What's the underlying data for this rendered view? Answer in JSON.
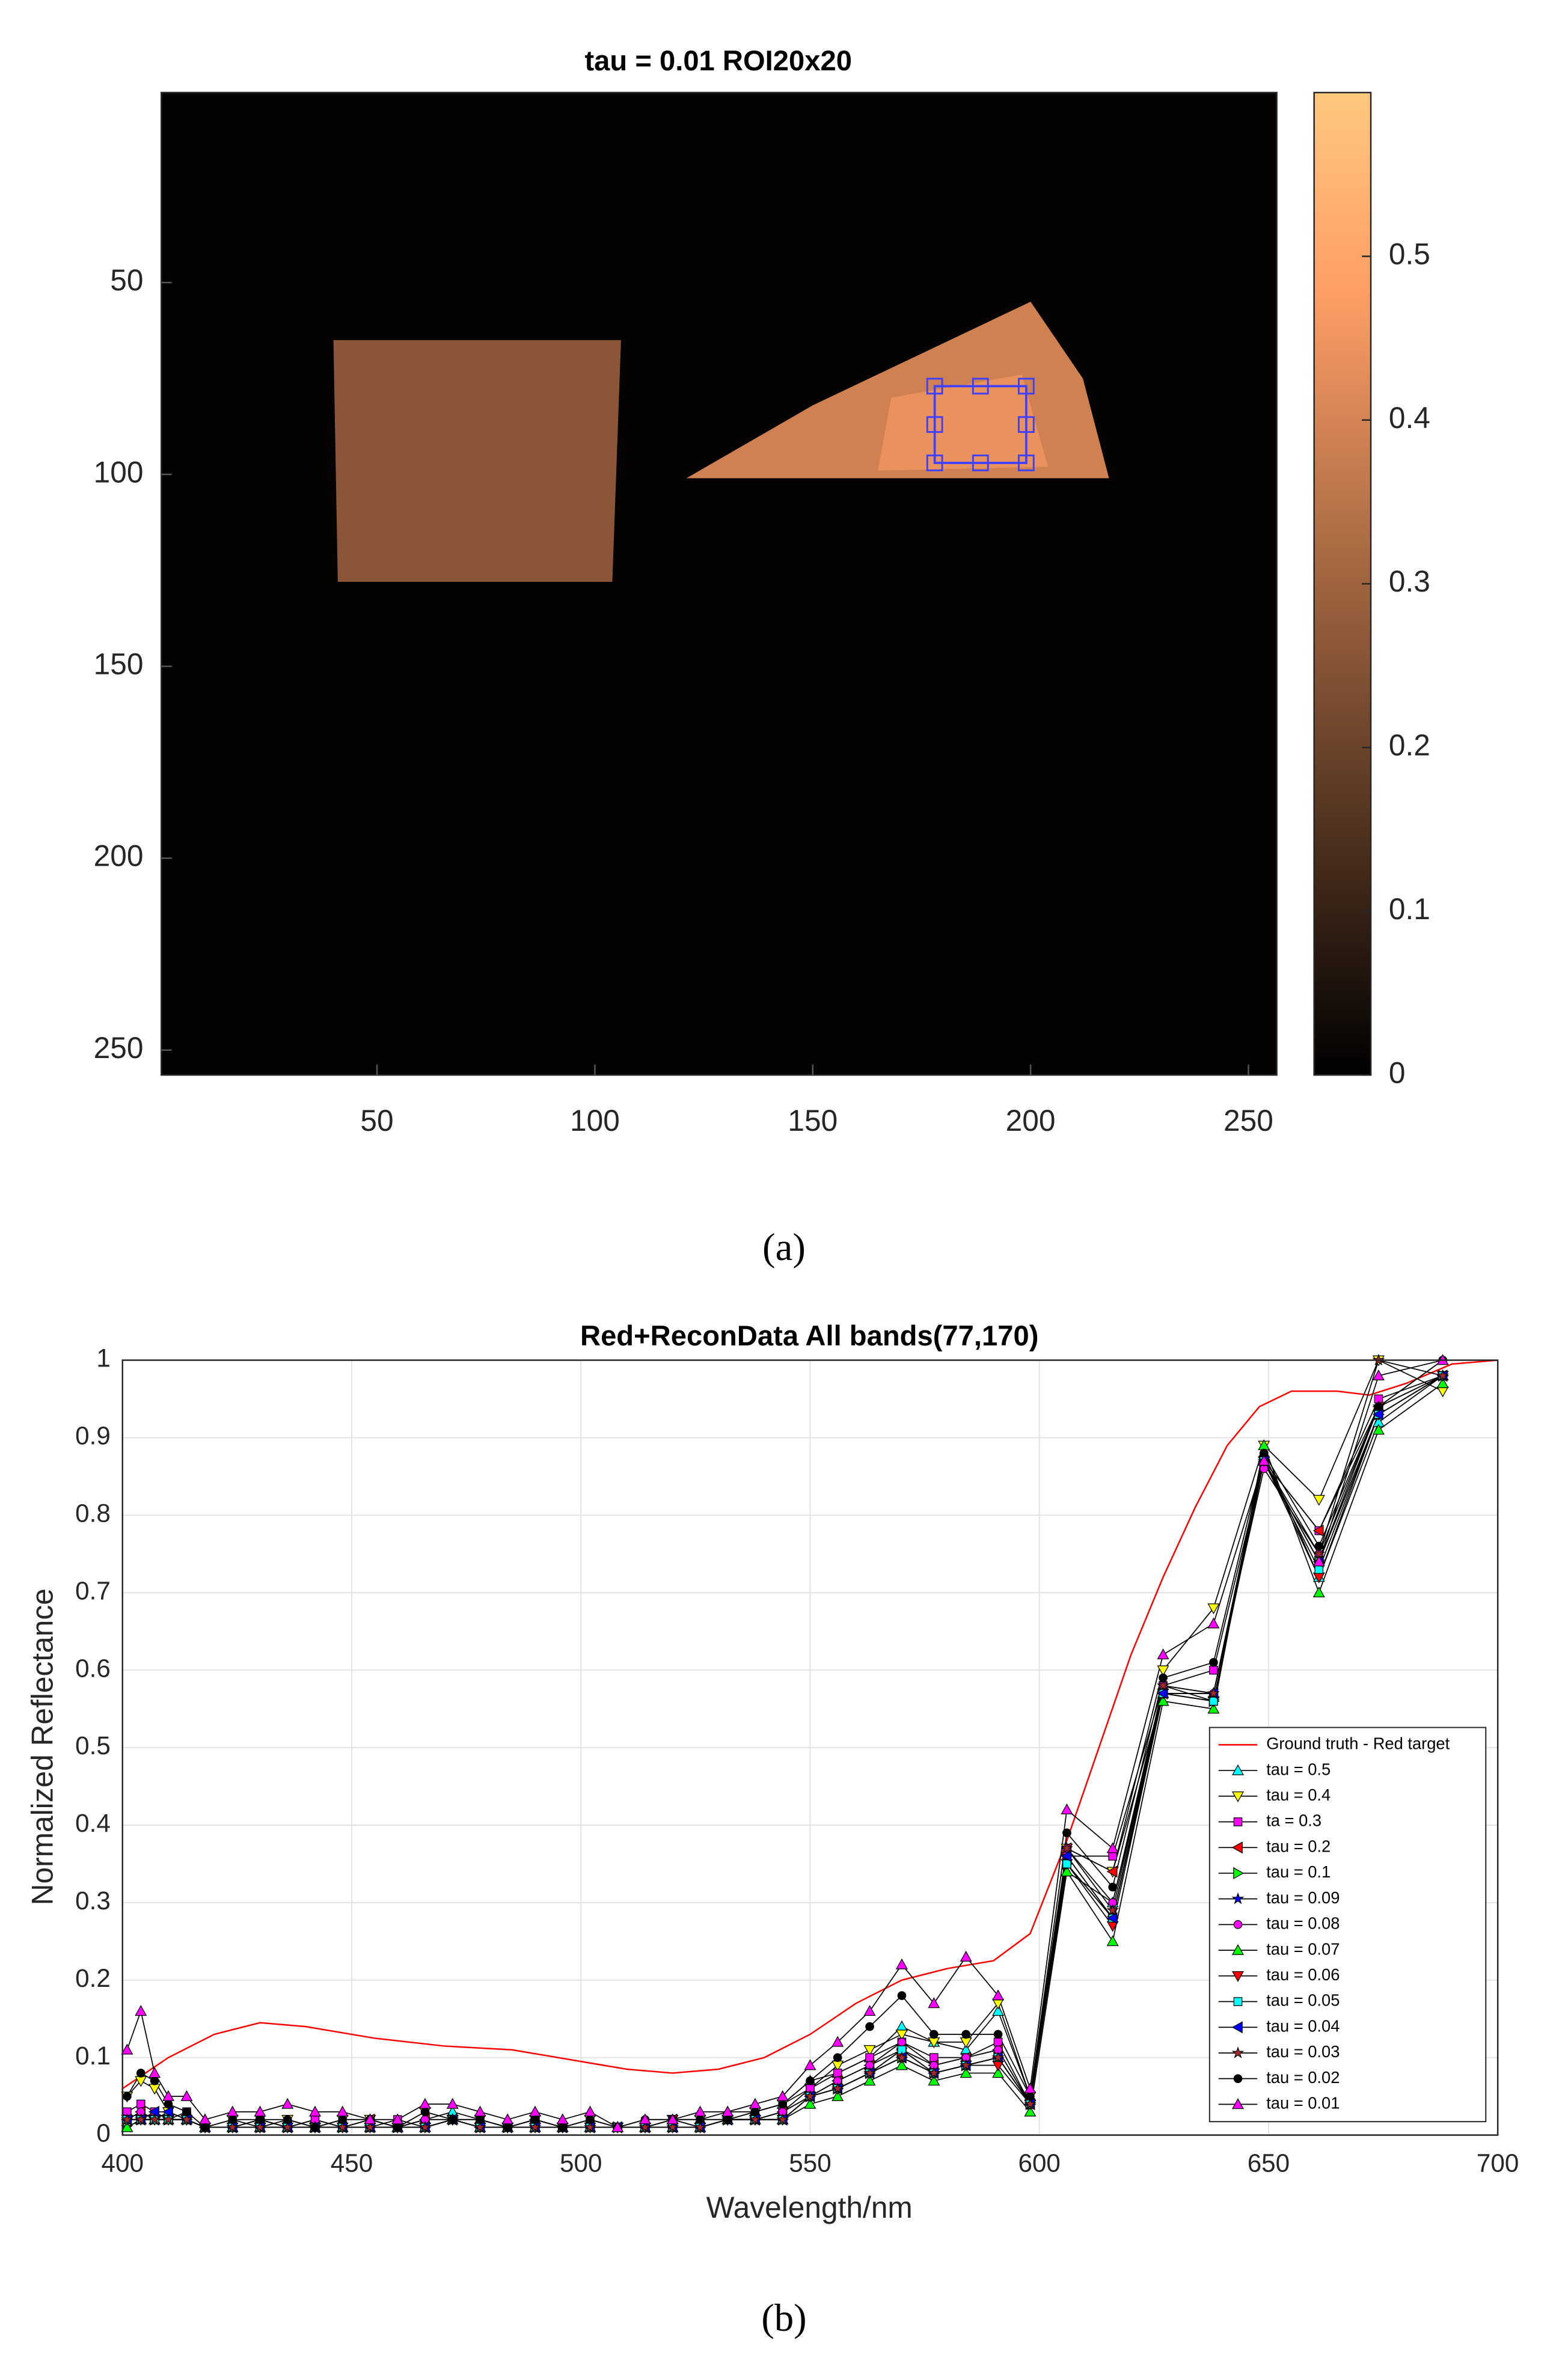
{
  "chart_data": [
    {
      "type": "image",
      "title": "tau = 0.01 ROI20x20",
      "panel_label": "(a)",
      "xlim": [
        0.5,
        256.5
      ],
      "ylim": [
        0.5,
        256.5
      ],
      "y_reversed": true,
      "xticks": [
        50,
        100,
        150,
        200,
        250
      ],
      "yticks": [
        50,
        100,
        150,
        200,
        250
      ],
      "colormap": "copper",
      "clim": [
        0,
        0.6
      ],
      "cticks": [
        0,
        0.1,
        0.2,
        0.3,
        0.4,
        0.5
      ],
      "background": 0.01,
      "regions": [
        {
          "polygon": [
            [
              40,
              65
            ],
            [
              106,
              65
            ],
            [
              104,
              128
            ],
            [
              41,
              128
            ]
          ],
          "value": 0.26
        },
        {
          "polygon": [
            [
              121,
              101
            ],
            [
              150,
              82
            ],
            [
              200,
              55
            ],
            [
              212,
              75
            ],
            [
              218,
              101
            ]
          ],
          "value": 0.39
        },
        {
          "polygon": [
            [
              168,
              80
            ],
            [
              198,
              74
            ],
            [
              204,
              98
            ],
            [
              165,
              99
            ]
          ],
          "value": 0.44
        }
      ],
      "roi": [
        178,
        77,
        199,
        97
      ],
      "roi_color": "#4040ff"
    },
    {
      "type": "line",
      "title": "Red+ReconData All bands(77,170)",
      "panel_label": "(b)",
      "xlabel": "Wavelength/nm",
      "ylabel": "Normalized Reflectance",
      "xlim": [
        400,
        700
      ],
      "ylim": [
        0,
        1
      ],
      "xticks": [
        400,
        450,
        500,
        550,
        600,
        650,
        700
      ],
      "yticks": [
        0,
        0.1,
        0.2,
        0.3,
        0.4,
        0.5,
        0.6,
        0.7,
        0.8,
        0.9,
        1
      ],
      "grid": true,
      "legend": "lower right",
      "line_color": "#000000",
      "x": [
        401,
        404,
        407,
        410,
        414,
        418,
        424,
        430,
        436,
        442,
        448,
        454,
        460,
        466,
        472,
        478,
        484,
        490,
        496,
        502,
        508,
        514,
        520,
        526,
        532,
        538,
        544,
        550,
        556,
        563,
        570,
        577,
        584,
        591,
        598,
        606,
        616,
        627,
        638,
        649,
        661,
        674,
        688
      ],
      "reference": {
        "name": "Ground truth - Red target",
        "color": "#ff0000",
        "x": [
          400,
          405,
          410,
          420,
          430,
          440,
          455,
          470,
          485,
          500,
          510,
          520,
          530,
          540,
          550,
          560,
          570,
          580,
          590,
          598,
          606,
          613,
          620,
          627,
          634,
          641,
          648,
          655,
          665,
          672,
          680,
          690,
          700
        ],
        "values": [
          0.06,
          0.08,
          0.1,
          0.13,
          0.145,
          0.14,
          0.125,
          0.115,
          0.11,
          0.095,
          0.085,
          0.08,
          0.085,
          0.1,
          0.13,
          0.17,
          0.2,
          0.215,
          0.225,
          0.26,
          0.38,
          0.5,
          0.62,
          0.72,
          0.81,
          0.89,
          0.94,
          0.96,
          0.96,
          0.955,
          0.97,
          0.995,
          1
        ]
      },
      "series": [
        {
          "name": "tau = 0.5",
          "color": "#00ffff",
          "marker": "tri-up",
          "values": [
            0.01,
            0.02,
            0.02,
            0.03,
            0.02,
            0.01,
            0.01,
            0.02,
            0.01,
            0.02,
            0.01,
            0.02,
            0.01,
            0.02,
            0.03,
            0.02,
            0.01,
            0.02,
            0.01,
            0.01,
            0.01,
            0.01,
            0.02,
            0.02,
            0.03,
            0.03,
            0.04,
            0.07,
            0.08,
            0.1,
            0.14,
            0.12,
            0.11,
            0.16,
            0.05,
            0.34,
            0.3,
            0.57,
            0.57,
            0.88,
            0.72,
            0.92,
            0.98
          ]
        },
        {
          "name": "tau = 0.4",
          "color": "#ffff00",
          "marker": "tri-down",
          "values": [
            0.05,
            0.07,
            0.06,
            0.03,
            0.02,
            0.01,
            0.02,
            0.01,
            0.02,
            0.01,
            0.02,
            0.02,
            0.01,
            0.03,
            0.02,
            0.02,
            0.01,
            0.02,
            0.01,
            0.02,
            0.01,
            0.01,
            0.02,
            0.02,
            0.02,
            0.03,
            0.04,
            0.06,
            0.09,
            0.11,
            0.13,
            0.12,
            0.12,
            0.17,
            0.05,
            0.37,
            0.34,
            0.6,
            0.68,
            0.89,
            0.82,
            1,
            0.96
          ]
        },
        {
          "name": "ta = 0.3",
          "color": "#ff00ff",
          "marker": "square",
          "values": [
            0.03,
            0.04,
            0.03,
            0.02,
            0.03,
            0.01,
            0.01,
            0.02,
            0.01,
            0.02,
            0.01,
            0.01,
            0.02,
            0.01,
            0.02,
            0.02,
            0.01,
            0.02,
            0.01,
            0.01,
            0.01,
            0.01,
            0.02,
            0.01,
            0.02,
            0.02,
            0.03,
            0.06,
            0.08,
            0.1,
            0.12,
            0.1,
            0.1,
            0.12,
            0.04,
            0.36,
            0.36,
            0.58,
            0.6,
            0.87,
            0.78,
            0.95,
            0.98
          ]
        },
        {
          "name": "tau = 0.2",
          "color": "#ff0000",
          "marker": "tri-left",
          "values": [
            0.02,
            0.03,
            0.02,
            0.02,
            0.02,
            0.01,
            0.01,
            0.02,
            0.01,
            0.01,
            0.01,
            0.02,
            0.01,
            0.02,
            0.02,
            0.01,
            0.01,
            0.02,
            0.01,
            0.01,
            0.01,
            0.01,
            0.02,
            0.01,
            0.02,
            0.02,
            0.03,
            0.05,
            0.07,
            0.09,
            0.11,
            0.09,
            0.1,
            0.11,
            0.04,
            0.37,
            0.34,
            0.57,
            0.57,
            0.87,
            0.78,
            0.94,
            0.98
          ]
        },
        {
          "name": "tau = 0.1",
          "color": "#00ff00",
          "marker": "tri-right",
          "values": [
            0.02,
            0.02,
            0.02,
            0.02,
            0.02,
            0.01,
            0.01,
            0.01,
            0.01,
            0.01,
            0.01,
            0.01,
            0.01,
            0.01,
            0.02,
            0.01,
            0.01,
            0.01,
            0.01,
            0.01,
            0.01,
            0.01,
            0.01,
            0.01,
            0.02,
            0.02,
            0.02,
            0.05,
            0.06,
            0.08,
            0.1,
            0.08,
            0.09,
            0.1,
            0.04,
            0.35,
            0.28,
            0.57,
            0.56,
            0.87,
            0.74,
            0.93,
            0.98
          ]
        },
        {
          "name": "tau = 0.09",
          "color": "#0000ff",
          "marker": "star",
          "values": [
            0.01,
            0.02,
            0.02,
            0.02,
            0.02,
            0.01,
            0.01,
            0.01,
            0.01,
            0.01,
            0.01,
            0.01,
            0.01,
            0.01,
            0.02,
            0.01,
            0.01,
            0.01,
            0.01,
            0.01,
            0.01,
            0.01,
            0.01,
            0.01,
            0.02,
            0.02,
            0.02,
            0.05,
            0.06,
            0.08,
            0.11,
            0.08,
            0.09,
            0.1,
            0.04,
            0.36,
            0.28,
            0.58,
            0.56,
            0.87,
            0.74,
            0.94,
            0.98
          ]
        },
        {
          "name": "tau = 0.08",
          "color": "#ff00ff",
          "marker": "circle",
          "values": [
            0.02,
            0.03,
            0.02,
            0.02,
            0.02,
            0.01,
            0.01,
            0.02,
            0.01,
            0.01,
            0.01,
            0.02,
            0.01,
            0.02,
            0.02,
            0.01,
            0.01,
            0.02,
            0.01,
            0.01,
            0.01,
            0.01,
            0.01,
            0.01,
            0.02,
            0.02,
            0.03,
            0.05,
            0.07,
            0.09,
            0.12,
            0.09,
            0.1,
            0.11,
            0.04,
            0.37,
            0.3,
            0.58,
            0.57,
            0.86,
            0.75,
            0.94,
            1
          ]
        },
        {
          "name": "tau = 0.07",
          "color": "#00ff00",
          "marker": "tri-up",
          "values": [
            0.01,
            0.02,
            0.02,
            0.02,
            0.02,
            0.01,
            0.01,
            0.01,
            0.01,
            0.01,
            0.01,
            0.01,
            0.01,
            0.01,
            0.02,
            0.01,
            0.01,
            0.01,
            0.01,
            0.01,
            0.01,
            0.01,
            0.01,
            0.01,
            0.02,
            0.02,
            0.02,
            0.04,
            0.05,
            0.07,
            0.09,
            0.07,
            0.08,
            0.08,
            0.03,
            0.34,
            0.25,
            0.56,
            0.55,
            0.89,
            0.7,
            0.91,
            0.97
          ]
        },
        {
          "name": "tau = 0.06",
          "color": "#ff0000",
          "marker": "tri-down",
          "values": [
            0.02,
            0.02,
            0.02,
            0.02,
            0.02,
            0.01,
            0.01,
            0.01,
            0.01,
            0.01,
            0.01,
            0.01,
            0.01,
            0.01,
            0.02,
            0.01,
            0.01,
            0.01,
            0.01,
            0.01,
            0.01,
            0.01,
            0.01,
            0.01,
            0.02,
            0.02,
            0.02,
            0.05,
            0.06,
            0.08,
            0.1,
            0.08,
            0.09,
            0.09,
            0.04,
            0.35,
            0.27,
            0.57,
            0.56,
            0.87,
            0.72,
            0.93,
            0.98
          ]
        },
        {
          "name": "tau = 0.05",
          "color": "#00ffff",
          "marker": "square",
          "values": [
            0.02,
            0.02,
            0.02,
            0.02,
            0.02,
            0.01,
            0.01,
            0.01,
            0.01,
            0.01,
            0.01,
            0.01,
            0.01,
            0.01,
            0.02,
            0.01,
            0.01,
            0.01,
            0.01,
            0.01,
            0.01,
            0.01,
            0.01,
            0.01,
            0.02,
            0.02,
            0.02,
            0.05,
            0.06,
            0.08,
            0.11,
            0.08,
            0.09,
            0.1,
            0.04,
            0.35,
            0.28,
            0.57,
            0.56,
            0.87,
            0.73,
            0.93,
            0.98
          ]
        },
        {
          "name": "tau = 0.04",
          "color": "#0000ff",
          "marker": "tri-left",
          "values": [
            0.02,
            0.02,
            0.03,
            0.03,
            0.02,
            0.01,
            0.01,
            0.01,
            0.01,
            0.01,
            0.01,
            0.01,
            0.01,
            0.01,
            0.02,
            0.01,
            0.01,
            0.01,
            0.01,
            0.01,
            0.01,
            0.01,
            0.01,
            0.01,
            0.02,
            0.02,
            0.02,
            0.05,
            0.06,
            0.08,
            0.1,
            0.08,
            0.09,
            0.1,
            0.04,
            0.36,
            0.28,
            0.57,
            0.57,
            0.87,
            0.74,
            0.93,
            0.98
          ]
        },
        {
          "name": "tau = 0.03",
          "color": "#a52a2a",
          "marker": "star",
          "values": [
            0.02,
            0.02,
            0.02,
            0.02,
            0.02,
            0.01,
            0.01,
            0.01,
            0.01,
            0.01,
            0.01,
            0.01,
            0.01,
            0.01,
            0.02,
            0.01,
            0.01,
            0.01,
            0.01,
            0.01,
            0.01,
            0.01,
            0.01,
            0.01,
            0.02,
            0.02,
            0.02,
            0.05,
            0.06,
            0.08,
            0.1,
            0.08,
            0.09,
            0.1,
            0.04,
            0.37,
            0.29,
            0.58,
            0.57,
            0.87,
            0.75,
            1,
            0.98
          ]
        },
        {
          "name": "tau = 0.02",
          "color": "#000000",
          "marker": "circle",
          "values": [
            0.05,
            0.08,
            0.07,
            0.04,
            0.03,
            0.01,
            0.02,
            0.02,
            0.02,
            0.01,
            0.02,
            0.02,
            0.01,
            0.03,
            0.02,
            0.02,
            0.01,
            0.02,
            0.01,
            0.02,
            0.01,
            0.02,
            0.02,
            0.02,
            0.02,
            0.03,
            0.04,
            0.07,
            0.1,
            0.14,
            0.18,
            0.13,
            0.13,
            0.13,
            0.05,
            0.39,
            0.32,
            0.59,
            0.61,
            0.88,
            0.76,
            0.94,
            1
          ]
        },
        {
          "name": "tau = 0.01",
          "color": "#ff00ff",
          "marker": "tri-up",
          "values": [
            0.11,
            0.16,
            0.08,
            0.05,
            0.05,
            0.02,
            0.03,
            0.03,
            0.04,
            0.03,
            0.03,
            0.02,
            0.02,
            0.04,
            0.04,
            0.03,
            0.02,
            0.03,
            0.02,
            0.03,
            0.01,
            0.02,
            0.02,
            0.03,
            0.03,
            0.04,
            0.05,
            0.09,
            0.12,
            0.16,
            0.22,
            0.17,
            0.23,
            0.18,
            0.06,
            0.42,
            0.37,
            0.62,
            0.66,
            0.87,
            0.74,
            0.98,
            1
          ]
        }
      ]
    }
  ]
}
